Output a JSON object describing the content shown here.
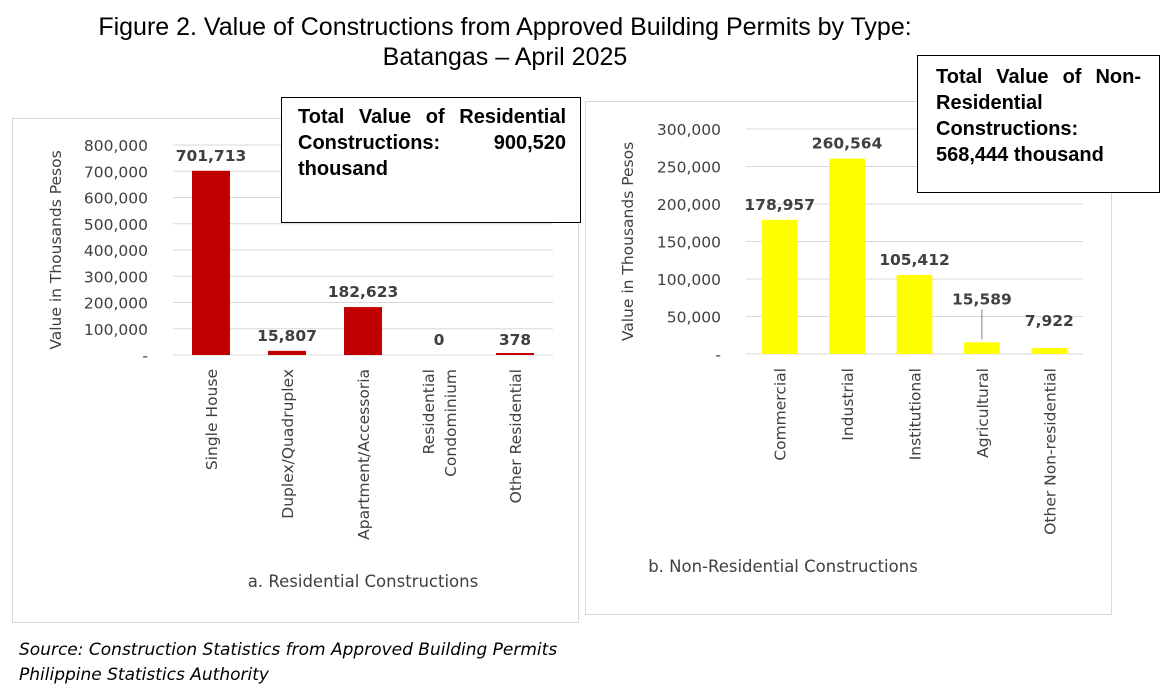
{
  "figure": {
    "title_line1": "Figure 2.  Value of Constructions from Approved Building Permits by Type:",
    "title_line2": "Batangas – April 2025"
  },
  "callouts": {
    "residential": "Total Value of Residential Constructions: 900,520 thousand",
    "non_residential": "Total Value of Non- Residential Constructions: 568,444 thousand"
  },
  "source": {
    "line1": "Source: Construction Statistics from Approved Building Permits",
    "line2": "Philippine Statistics Authority"
  },
  "colors": {
    "residential_bar": "#c00000",
    "non_residential_bar": "#ffff00",
    "gridline": "#d9d9d9",
    "text": "#404040"
  },
  "chart_data": [
    {
      "type": "bar",
      "title": "a. Residential Constructions",
      "xlabel": "",
      "ylabel": "Value in Thousands Pesos",
      "categories": [
        "Single House",
        "Duplex/Quadruplex",
        "Apartment/Accessoria",
        "Residential Condominium",
        "Other Residential"
      ],
      "category_labels": [
        [
          "Single House"
        ],
        [
          "Duplex/Quadruplex"
        ],
        [
          "Apartment/Accessoria"
        ],
        [
          "Residential",
          "Condominium"
        ],
        [
          "Other Residential"
        ]
      ],
      "values": [
        701713,
        15807,
        182623,
        0,
        378
      ],
      "data_labels": [
        "701,713",
        "15,807",
        "182,623",
        "0",
        "378"
      ],
      "ylim": [
        0,
        800000
      ],
      "yticks": [
        0,
        100000,
        200000,
        300000,
        400000,
        500000,
        600000,
        700000,
        800000
      ],
      "ytick_labels": [
        "-",
        "100,000",
        "200,000",
        "300,000",
        "400,000",
        "500,000",
        "600,000",
        "700,000",
        "800,000"
      ],
      "grid": true,
      "legend": "none"
    },
    {
      "type": "bar",
      "title": "b. Non-Residential Constructions",
      "xlabel": "",
      "ylabel": "Value in Thousands Pesos",
      "categories": [
        "Commercial",
        "Industrial",
        "Institutional",
        "Agricultural",
        "Other Non-residential"
      ],
      "category_labels": [
        [
          "Commercial"
        ],
        [
          "Industrial"
        ],
        [
          "Institutional"
        ],
        [
          "Agricultural"
        ],
        [
          "Other Non-residential"
        ]
      ],
      "values": [
        178957,
        260564,
        105412,
        15589,
        7922
      ],
      "data_labels": [
        "178,957",
        "260,564",
        "105,412",
        "15,589",
        "7,922"
      ],
      "ylim": [
        0,
        300000
      ],
      "yticks": [
        0,
        50000,
        100000,
        150000,
        200000,
        250000,
        300000
      ],
      "ytick_labels": [
        "-",
        "50,000",
        "100,000",
        "150,000",
        "200,000",
        "250,000",
        "300,000"
      ],
      "grid": true,
      "legend": "none"
    }
  ]
}
